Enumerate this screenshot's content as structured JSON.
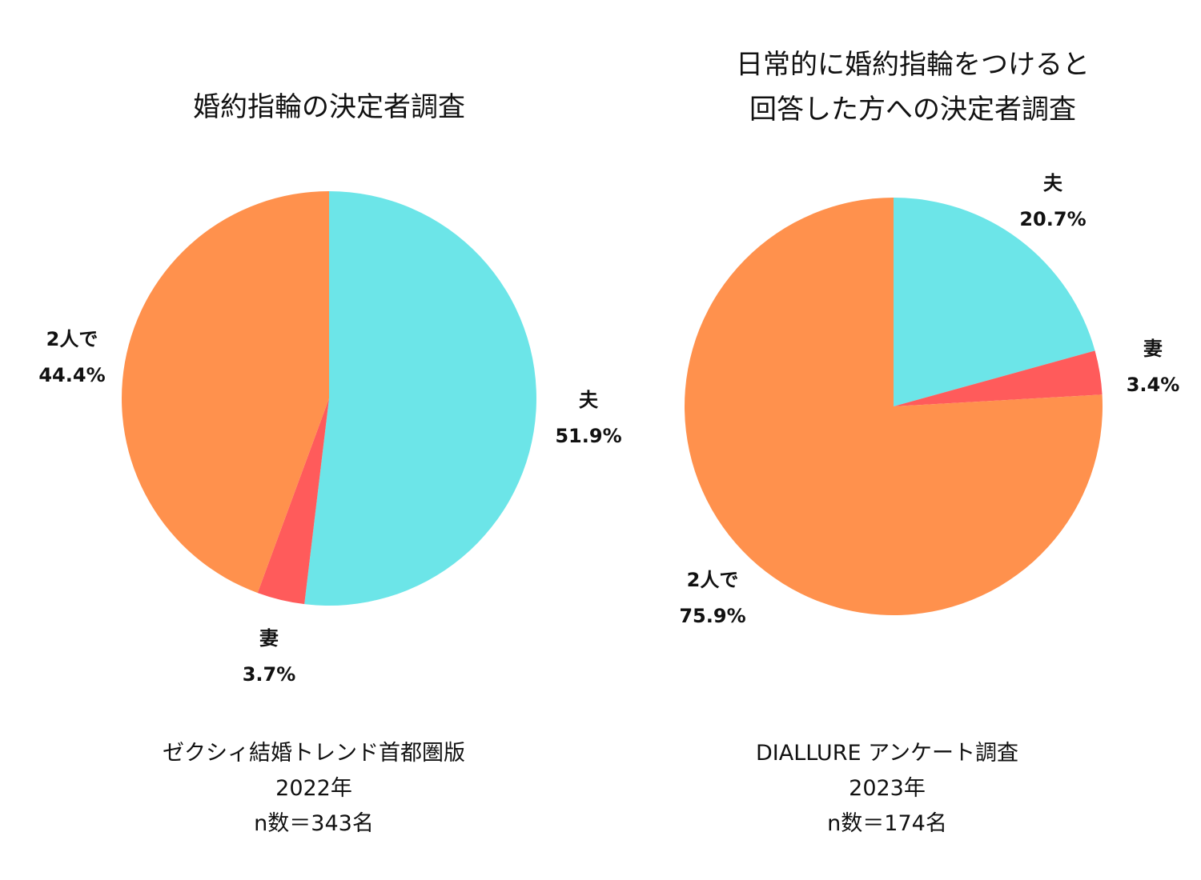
{
  "chart_data": [
    {
      "type": "pie",
      "title": [
        "婚約指輪の決定者調査"
      ],
      "slices": [
        {
          "label": "夫",
          "value": 51.9,
          "value_text": "51.9%",
          "color": "#6ce5e8"
        },
        {
          "label": "妻",
          "value": 3.7,
          "value_text": "3.7%",
          "color": "#ff5b5b"
        },
        {
          "label": "2人で",
          "value": 44.4,
          "value_text": "44.4%",
          "color": "#ff914d"
        }
      ],
      "start": "12 o'clock",
      "direction": "clockwise",
      "source": [
        "ゼクシィ結婚トレンド首都圏版",
        "2022年",
        "n数＝343名"
      ]
    },
    {
      "type": "pie",
      "title": [
        "日常的に婚約指輪をつけると",
        "回答した方への決定者調査"
      ],
      "slices": [
        {
          "label": "夫",
          "value": 20.7,
          "value_text": "20.7%",
          "color": "#6ce5e8"
        },
        {
          "label": "妻",
          "value": 3.4,
          "value_text": "3.4%",
          "color": "#ff5b5b"
        },
        {
          "label": "2人で",
          "value": 75.9,
          "value_text": "75.9%",
          "color": "#ff914d"
        }
      ],
      "start": "12 o'clock",
      "direction": "clockwise",
      "source": [
        "DIALLURE アンケート調査",
        "2023年",
        "n数＝174名"
      ]
    }
  ]
}
